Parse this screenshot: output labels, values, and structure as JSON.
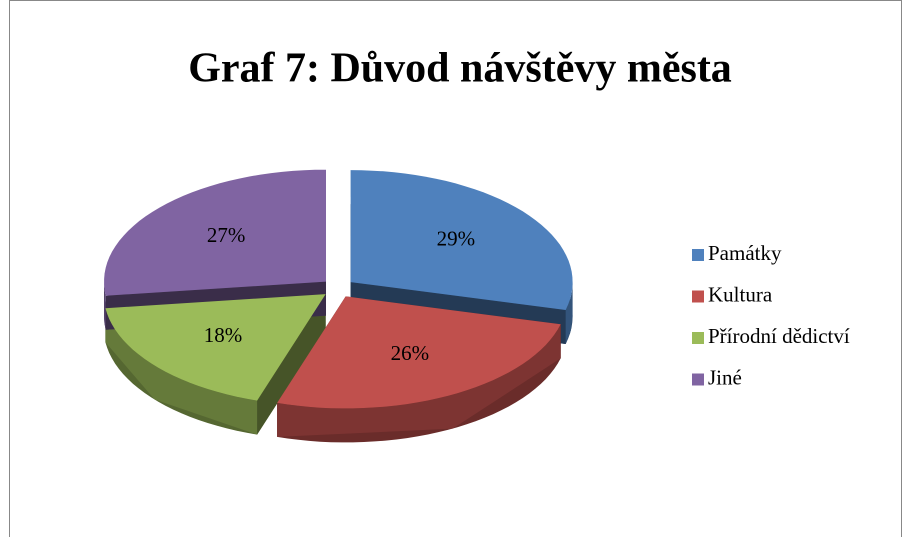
{
  "chart_data": {
    "type": "pie",
    "title": "Graf 7: Důvod návštěvy města",
    "categories": [
      "Památky",
      "Kultura",
      "Přírodní dědictví",
      "Jiné"
    ],
    "values": [
      29,
      26,
      18,
      27
    ],
    "value_labels": [
      "29%",
      "26%",
      "18%",
      "27%"
    ],
    "colors": [
      "#4f81bd",
      "#c0504d",
      "#9bbb59",
      "#8064a2"
    ],
    "legend": "right"
  }
}
